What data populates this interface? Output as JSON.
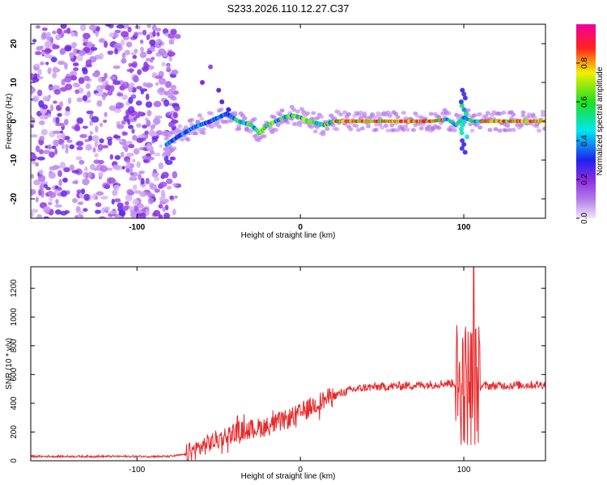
{
  "page_title": "S233.2026.110.12.27.C37",
  "chart_data": [
    {
      "type": "heatmap",
      "title": "S233.2026.110.12.27.C37",
      "xlabel": "Height of straight line (km)",
      "ylabel": "Frequency (Hz)",
      "xlim": [
        -165,
        150
      ],
      "ylim": [
        -25,
        25
      ],
      "xticks": [
        -100,
        0,
        100
      ],
      "yticks": [
        -20,
        -10,
        0,
        10,
        20
      ],
      "colorbar": {
        "label": "Normalized spectral amplitude",
        "range": [
          0,
          1
        ],
        "ticks": [
          "0.0",
          "0.2",
          "0.4",
          "0.6",
          "0.8"
        ],
        "colormap": [
          "#f0e6fb",
          "#8c2be2",
          "#1e22f0",
          "#00e6f0",
          "#20e020",
          "#f0f000",
          "#ff2020",
          "#f000a0"
        ]
      },
      "description_points": {
        "noise_region_x": [
          -165,
          -80
        ],
        "ridge": {
          "x": [
            -82,
            -75,
            -65,
            -55,
            -45,
            -38,
            -30,
            -25,
            -20,
            -15,
            -10,
            -5,
            0,
            5,
            10,
            15,
            20,
            30,
            40,
            60,
            80,
            90,
            95,
            100,
            105,
            110,
            130,
            150
          ],
          "y": [
            -6,
            -4,
            -1.5,
            0,
            2,
            0,
            -1,
            -3,
            -1,
            0,
            1,
            1.5,
            1,
            0,
            -0.5,
            -1,
            0,
            0,
            0,
            0,
            0,
            0.5,
            -1,
            1,
            0,
            0,
            0,
            0
          ]
        },
        "spike_x": 100
      }
    },
    {
      "type": "line",
      "xlabel": "Height of straight line (km)",
      "ylabel": "SNR (10 * v/v)",
      "xlim": [
        -165,
        150
      ],
      "ylim": [
        0,
        1350
      ],
      "xticks": [
        -100,
        0,
        100
      ],
      "yticks": [
        0,
        200,
        400,
        600,
        800,
        1000,
        1200
      ],
      "series": [
        {
          "name": "SNR",
          "color": "#e8282a",
          "x_knots": [
            -165,
            -80,
            -70,
            -60,
            -50,
            -40,
            -30,
            -20,
            -10,
            0,
            10,
            20,
            30,
            40,
            60,
            80,
            90,
            95,
            100,
            105,
            110,
            130,
            150
          ],
          "y_knots": [
            30,
            30,
            45,
            100,
            150,
            200,
            220,
            240,
            280,
            330,
            400,
            450,
            490,
            510,
            520,
            530,
            540,
            540,
            540,
            530,
            520,
            525,
            530
          ]
        }
      ],
      "spike": {
        "x_range": [
          95,
          110
        ],
        "max": 1350,
        "min": 110
      }
    }
  ]
}
